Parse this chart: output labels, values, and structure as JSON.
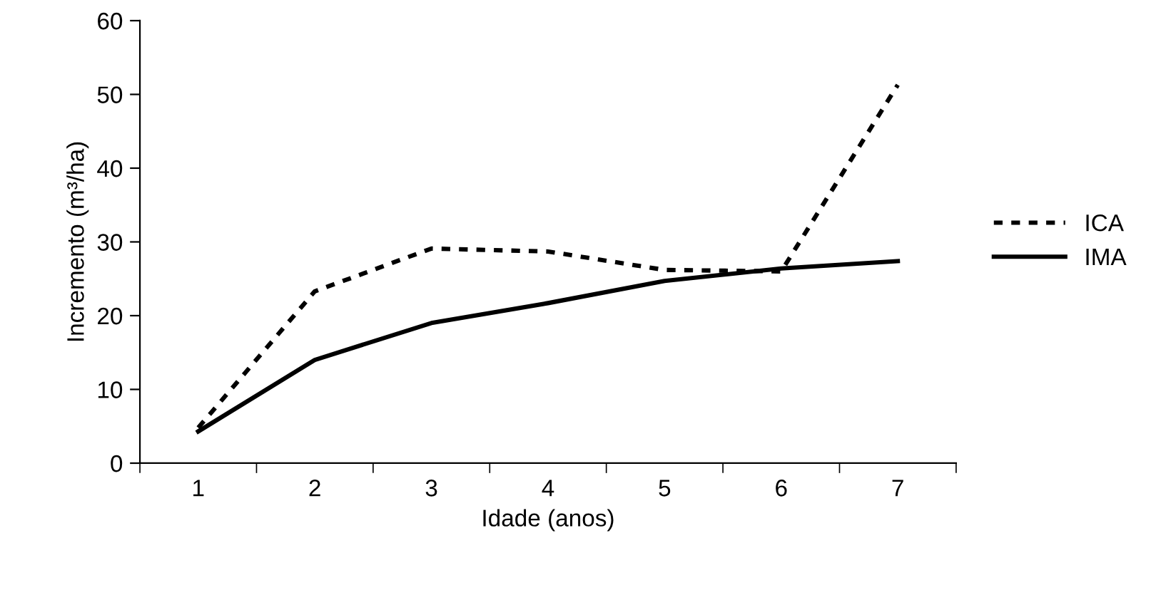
{
  "chart_data": {
    "type": "line",
    "xlabel": "Idade (anos)",
    "ylabel": "Incremento (m³/ha)",
    "categories": [
      "1",
      "2",
      "3",
      "4",
      "5",
      "6",
      "7"
    ],
    "series": [
      {
        "name": "ICA",
        "color": "#000000",
        "line_style": "dashed",
        "values": [
          4.8,
          23.3,
          29.1,
          28.7,
          26.2,
          26.0,
          51.3
        ]
      },
      {
        "name": "IMA",
        "color": "#000000",
        "line_style": "solid",
        "values": [
          4.3,
          14.0,
          19.0,
          21.7,
          24.7,
          26.4,
          27.4
        ]
      }
    ],
    "ylim": [
      0,
      60
    ],
    "yticks": [
      0,
      10,
      20,
      30,
      40,
      50,
      60
    ],
    "grid": false,
    "legend": "right",
    "marker": "none"
  }
}
